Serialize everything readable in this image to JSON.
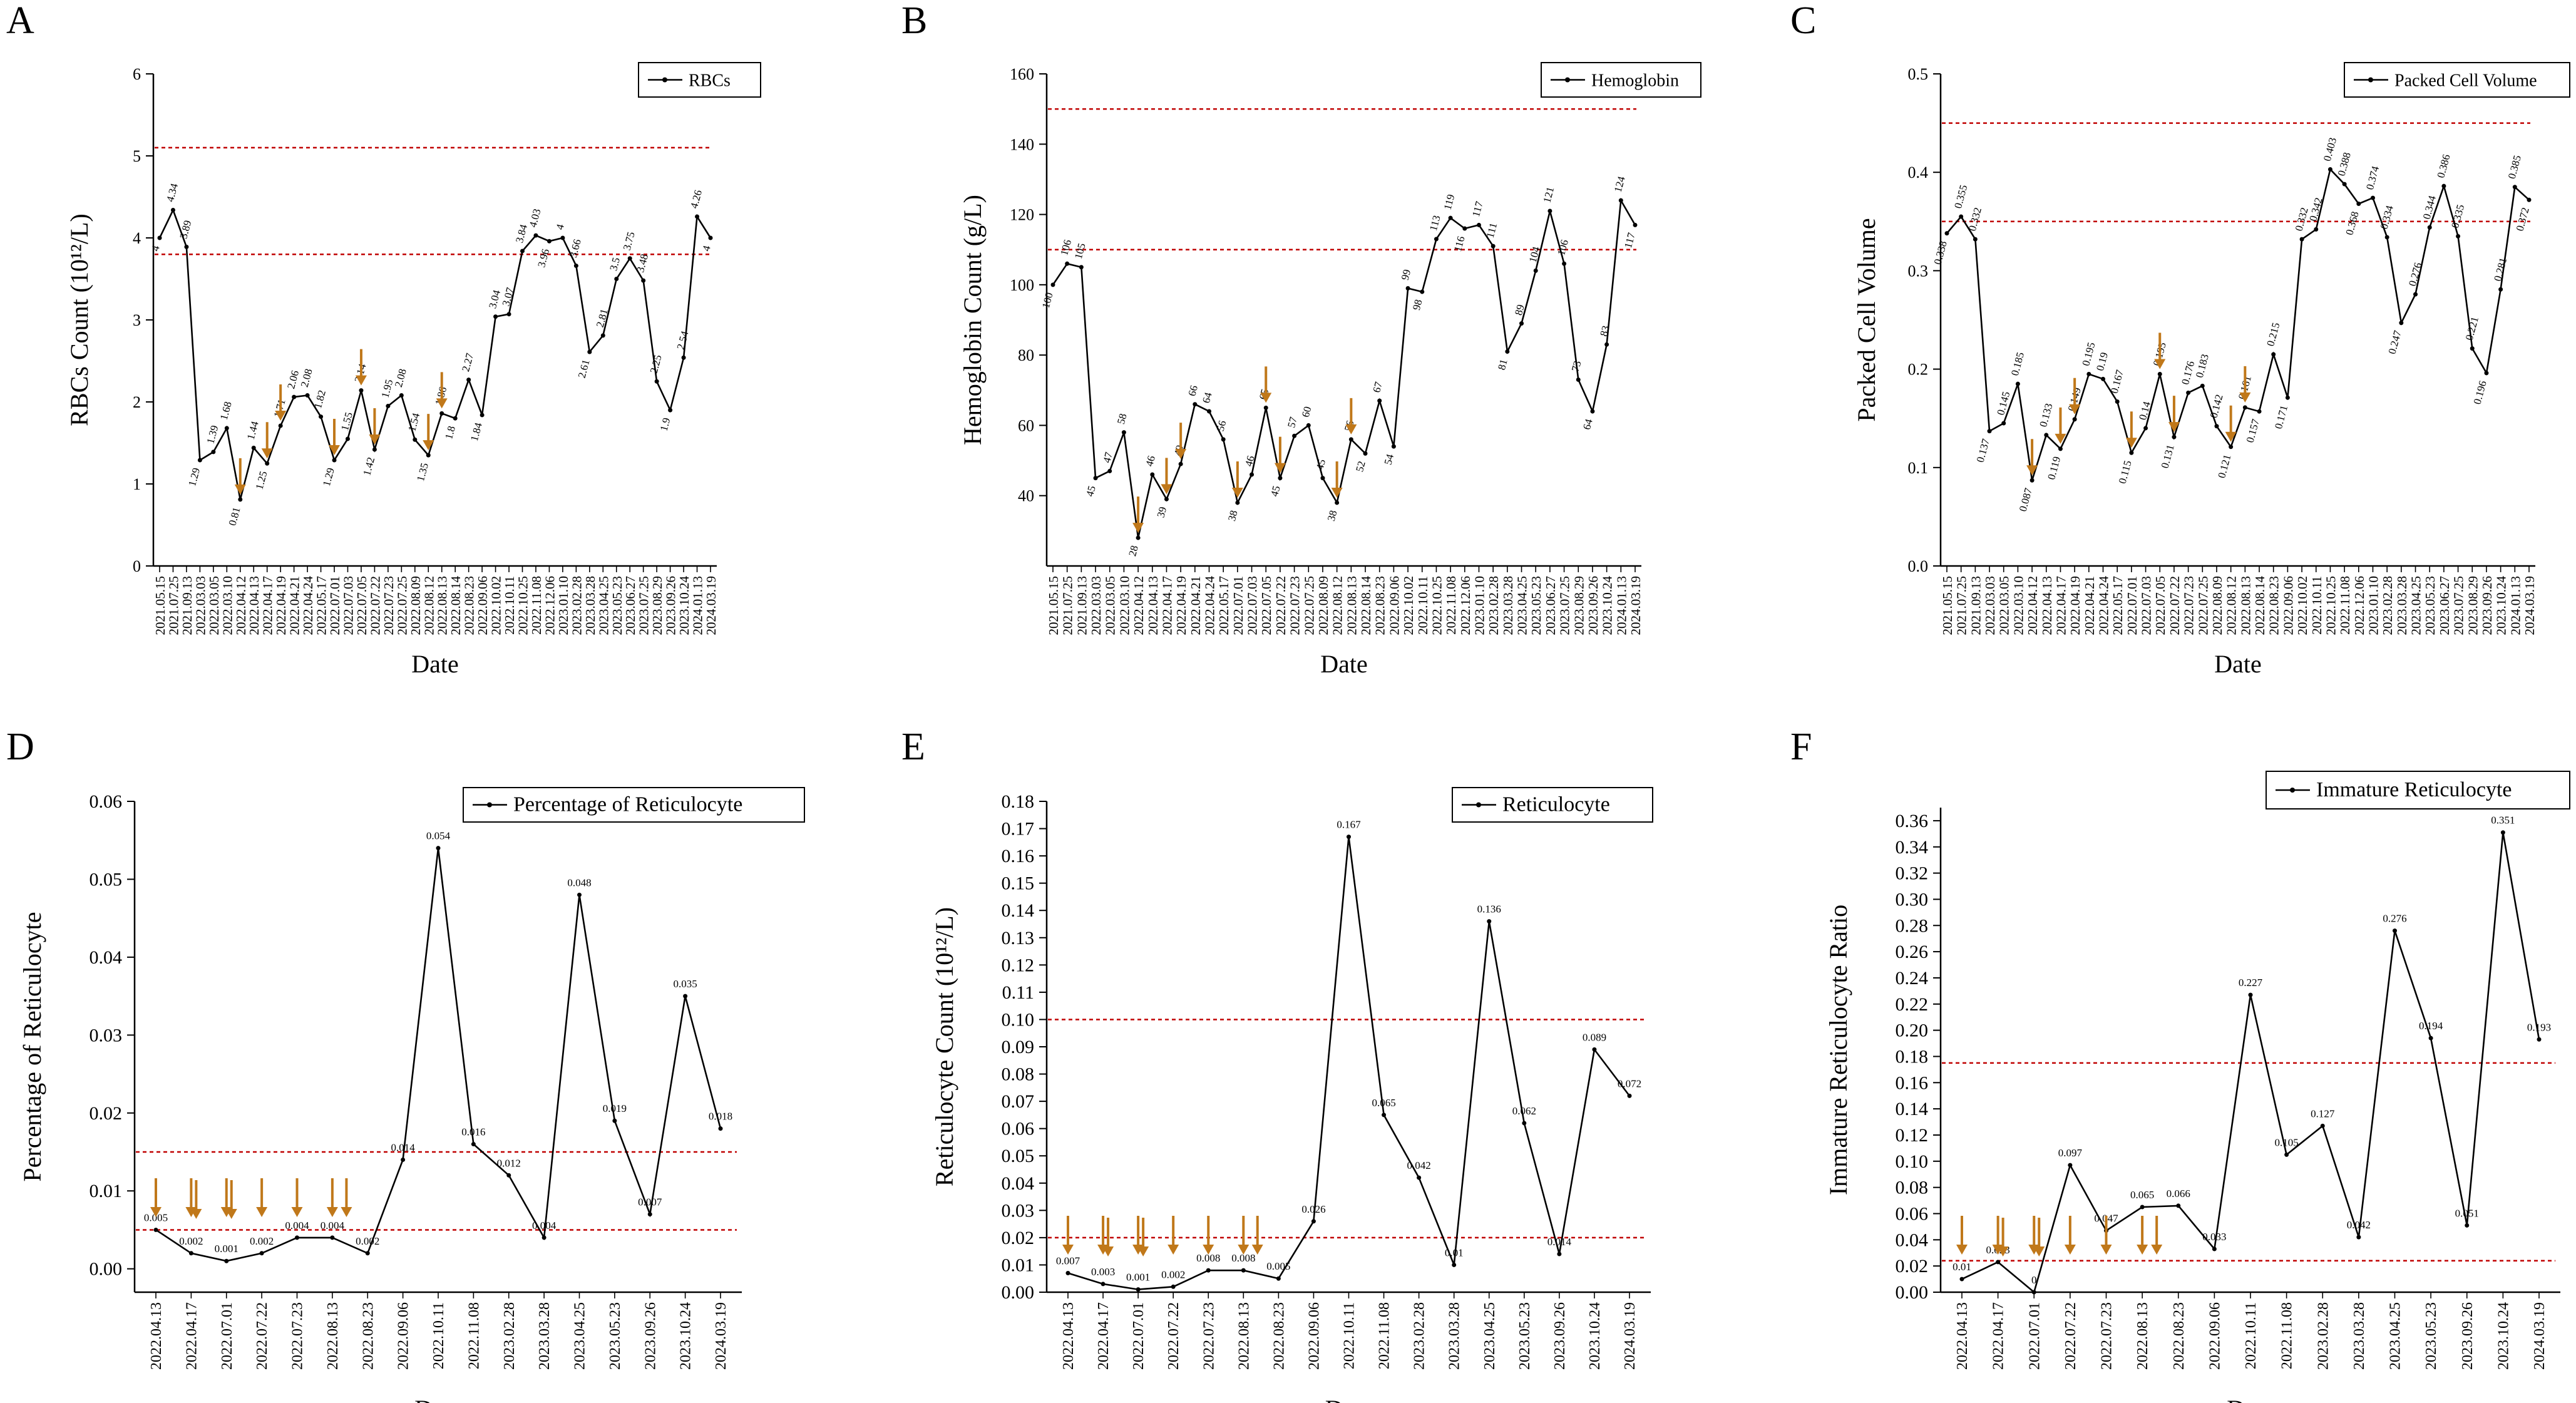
{
  "figure": {
    "colors": {
      "line": "#000000",
      "reference": "#c00000",
      "arrow": "#c0781a",
      "axis": "#000000"
    }
  },
  "chart_data": [
    {
      "panel": "A",
      "type": "line",
      "ylabel": "RBCs Count (10¹²/L)",
      "xlabel": "Date",
      "legend": "RBCs",
      "legend_position": "top-right",
      "ylim": [
        0,
        6
      ],
      "yticks": [
        0,
        1,
        2,
        3,
        4,
        5,
        6
      ],
      "ytick_labels": [
        "0",
        "1",
        "2",
        "3",
        "4",
        "5",
        "6"
      ],
      "reference_lines": [
        5.1,
        3.8
      ],
      "categories": [
        "2021.05.15",
        "2021.07.25",
        "2021.09.13",
        "2022.03.03",
        "2022.03.05",
        "2022.03.10",
        "2022.04.12",
        "2022.04.13",
        "2022.04.17",
        "2022.04.19",
        "2022.04.21",
        "2022.04.24",
        "2022.05.17",
        "2022.07.01",
        "2022.07.03",
        "2022.07.05",
        "2022.07.22",
        "2022.07.23",
        "2022.07.25",
        "2022.08.09",
        "2022.08.12",
        "2022.08.13",
        "2022.08.14",
        "2022.08.23",
        "2022.09.06",
        "2022.10.02",
        "2022.10.11",
        "2022.10.25",
        "2022.11.08",
        "2022.12.06",
        "2023.01.10",
        "2023.02.28",
        "2023.03.28",
        "2023.04.25",
        "2023.05.23",
        "2023.06.27",
        "2023.07.25",
        "2023.08.29",
        "2023.09.26",
        "2023.10.24",
        "2024.01.13",
        "2024.03.19"
      ],
      "values": [
        4,
        4.34,
        3.89,
        1.29,
        1.39,
        1.68,
        0.81,
        1.44,
        1.25,
        1.71,
        2.06,
        2.08,
        1.82,
        1.29,
        1.55,
        2.14,
        1.42,
        1.95,
        2.08,
        1.54,
        1.35,
        1.86,
        1.8,
        2.27,
        1.84,
        3.04,
        3.07,
        3.84,
        4.03,
        3.96,
        4,
        3.66,
        2.61,
        2.81,
        3.5,
        3.75,
        3.48,
        2.25,
        1.9,
        2.54,
        4.26,
        4
      ],
      "value_labels": [
        "4",
        "4.34",
        "3.89",
        "1.29",
        "1.39",
        "1.68",
        "0.81",
        "1.44",
        "1.25",
        "1.71",
        "2.06",
        "2.08",
        "1.82",
        "1.29",
        "1.55",
        "2.14",
        "1.42",
        "1.95",
        "2.08",
        "1.54",
        "1.35",
        "1.86",
        "1.8",
        "2.27",
        "1.84",
        "3.04",
        "3.07",
        "3.84",
        "4.03",
        "3.96",
        "4",
        "3.66",
        "2.61",
        "2.81",
        "3.5",
        "3.75",
        "3.48",
        "2.25",
        "1.9",
        "2.54",
        "4.26",
        "4"
      ],
      "arrow_indices": [
        6,
        8,
        9,
        13,
        15,
        16,
        20,
        21
      ]
    },
    {
      "panel": "B",
      "type": "line",
      "ylabel": "Hemoglobin Count (g/L)",
      "xlabel": "Date",
      "legend": "Hemoglobin",
      "legend_position": "top-right",
      "ylim": [
        20,
        160
      ],
      "yticks": [
        40,
        60,
        80,
        100,
        120,
        140,
        160
      ],
      "ytick_labels": [
        "40",
        "60",
        "80",
        "100",
        "120",
        "140",
        "160"
      ],
      "reference_lines": [
        150,
        110
      ],
      "categories": [
        "2021.05.15",
        "2021.07.25",
        "2021.09.13",
        "2022.03.03",
        "2022.03.05",
        "2022.03.10",
        "2022.04.12",
        "2022.04.13",
        "2022.04.17",
        "2022.04.19",
        "2022.04.21",
        "2022.04.24",
        "2022.05.17",
        "2022.07.01",
        "2022.07.03",
        "2022.07.05",
        "2022.07.22",
        "2022.07.23",
        "2022.07.25",
        "2022.08.09",
        "2022.08.12",
        "2022.08.13",
        "2022.08.14",
        "2022.08.23",
        "2022.09.06",
        "2022.10.02",
        "2022.10.11",
        "2022.10.25",
        "2022.11.08",
        "2022.12.06",
        "2023.01.10",
        "2023.02.28",
        "2023.03.28",
        "2023.04.25",
        "2023.05.23",
        "2023.06.27",
        "2023.07.25",
        "2023.08.29",
        "2023.09.26",
        "2023.10.24",
        "2024.01.13",
        "2024.03.19"
      ],
      "values": [
        100,
        106,
        105,
        45,
        47,
        58,
        28,
        46,
        39,
        49,
        66,
        64,
        56,
        38,
        46,
        65,
        45,
        57,
        60,
        45,
        38,
        56,
        52,
        67,
        54,
        99,
        98,
        113,
        119,
        116,
        117,
        111,
        81,
        89,
        104,
        121,
        106,
        73,
        64,
        83,
        124,
        117
      ],
      "value_labels": [
        "100",
        "106",
        "105",
        "45",
        "47",
        "58",
        "28",
        "46",
        "39",
        "49",
        "66",
        "64",
        "56",
        "38",
        "46",
        "65",
        "45",
        "57",
        "60",
        "45",
        "38",
        "56",
        "52",
        "67",
        "54",
        "99",
        "98",
        "113",
        "119",
        "116",
        "117",
        "111",
        "81",
        "89",
        "104",
        "121",
        "106",
        "73",
        "64",
        "83",
        "124",
        "117"
      ],
      "arrow_indices": [
        6,
        8,
        9,
        13,
        15,
        16,
        20,
        21
      ]
    },
    {
      "panel": "C",
      "type": "line",
      "ylabel": "Packed Cell Volume",
      "xlabel": "Date",
      "legend": "Packed Cell Volume",
      "legend_position": "top-right",
      "ylim": [
        0,
        0.5
      ],
      "yticks": [
        0,
        0.1,
        0.2,
        0.3,
        0.4,
        0.5
      ],
      "ytick_labels": [
        "0.0",
        "0.1",
        "0.2",
        "0.3",
        "0.4",
        "0.5"
      ],
      "reference_lines": [
        0.45,
        0.35
      ],
      "categories": [
        "2021.05.15",
        "2021.07.25",
        "2021.09.13",
        "2022.03.03",
        "2022.03.05",
        "2022.03.10",
        "2022.04.12",
        "2022.04.13",
        "2022.04.17",
        "2022.04.19",
        "2022.04.21",
        "2022.04.24",
        "2022.05.17",
        "2022.07.01",
        "2022.07.03",
        "2022.07.05",
        "2022.07.22",
        "2022.07.23",
        "2022.07.25",
        "2022.08.09",
        "2022.08.12",
        "2022.08.13",
        "2022.08.14",
        "2022.08.23",
        "2022.09.06",
        "2022.10.02",
        "2022.10.11",
        "2022.10.25",
        "2022.11.08",
        "2022.12.06",
        "2023.01.10",
        "2023.02.28",
        "2023.03.28",
        "2023.04.25",
        "2023.05.23",
        "2023.06.27",
        "2023.07.25",
        "2023.08.29",
        "2023.09.26",
        "2023.10.24",
        "2024.01.13",
        "2024.03.19"
      ],
      "values": [
        0.338,
        0.355,
        0.332,
        0.137,
        0.145,
        0.185,
        0.087,
        0.133,
        0.119,
        0.149,
        0.195,
        0.19,
        0.167,
        0.115,
        0.14,
        0.195,
        0.131,
        0.176,
        0.183,
        0.142,
        0.121,
        0.161,
        0.157,
        0.215,
        0.171,
        0.332,
        0.342,
        0.403,
        0.388,
        0.368,
        0.374,
        0.334,
        0.247,
        0.276,
        0.344,
        0.386,
        0.335,
        0.221,
        0.196,
        0.281,
        0.385,
        0.372
      ],
      "value_labels": [
        "0.338",
        "0.355",
        "0.332",
        "0.137",
        "0.145",
        "0.185",
        "0.087",
        "0.133",
        "0.119",
        "0.149",
        "0.195",
        "0.19",
        "0.167",
        "0.115",
        "0.14",
        "0.195",
        "0.131",
        "0.176",
        "0.183",
        "0.142",
        "0.121",
        "0.161",
        "0.157",
        "0.215",
        "0.171",
        "0.332",
        "0.342",
        "0.403",
        "0.388",
        "0.368",
        "0.374",
        "0.334",
        "0.247",
        "0.276",
        "0.344",
        "0.386",
        "0.335",
        "0.221",
        "0.196",
        "0.281",
        "0.385",
        "0.372"
      ],
      "arrow_indices": [
        6,
        8,
        9,
        13,
        15,
        16,
        20,
        21
      ]
    },
    {
      "panel": "D",
      "type": "line",
      "ylabel": "Percentage of Reticulocyte",
      "xlabel": "Date",
      "legend": "Percentage of Reticulocyte",
      "legend_position": "top-right",
      "ylim": [
        -0.003,
        0.06
      ],
      "yticks": [
        0,
        0.01,
        0.02,
        0.03,
        0.04,
        0.05,
        0.06
      ],
      "ytick_labels": [
        "0.00",
        "0.01",
        "0.02",
        "0.03",
        "0.04",
        "0.05",
        "0.06"
      ],
      "reference_lines": [
        0.015,
        0.005
      ],
      "categories": [
        "2022.04.13",
        "2022.04.17",
        "2022.07.01",
        "2022.07.22",
        "2022.07.23",
        "2022.08.13",
        "2022.08.23",
        "2022.09.06",
        "2022.10.11",
        "2022.11.08",
        "2023.02.28",
        "2023.03.28",
        "2023.04.25",
        "2023.05.23",
        "2023.09.26",
        "2023.10.24",
        "2024.03.19"
      ],
      "values": [
        0.005,
        0.002,
        0.001,
        0.002,
        0.004,
        0.004,
        0.002,
        0.014,
        0.054,
        0.016,
        0.012,
        0.004,
        0.048,
        0.019,
        0.007,
        0.035,
        0.018
      ],
      "value_labels": [
        "0.005",
        "0.002",
        "0.001",
        "0.002",
        "0.004",
        "0.004",
        "0.002",
        "0.014",
        "0.054",
        "0.016",
        "0.012",
        "0.004",
        "0.048",
        "0.019",
        "0.007",
        "0.035",
        "0.018"
      ],
      "arrow_positions": [
        0,
        1,
        1,
        2,
        2,
        3,
        4,
        5,
        5.4
      ]
    },
    {
      "panel": "E",
      "type": "line",
      "ylabel": "Reticulocyte Count (10¹²/L)",
      "xlabel": "Date",
      "legend": "Reticulocyte",
      "legend_position": "top-right",
      "ylim": [
        0,
        0.18
      ],
      "yticks": [
        0,
        0.01,
        0.02,
        0.03,
        0.04,
        0.05,
        0.06,
        0.07,
        0.08,
        0.09,
        0.1,
        0.11,
        0.12,
        0.13,
        0.14,
        0.15,
        0.16,
        0.17,
        0.18
      ],
      "ytick_labels": [
        "0.00",
        "0.01",
        "0.02",
        "0.03",
        "0.04",
        "0.05",
        "0.06",
        "0.07",
        "0.08",
        "0.09",
        "0.10",
        "0.11",
        "0.12",
        "0.13",
        "0.14",
        "0.15",
        "0.16",
        "0.17",
        "0.18"
      ],
      "reference_lines": [
        0.1,
        0.02
      ],
      "categories": [
        "2022.04.13",
        "2022.04.17",
        "2022.07.01",
        "2022.07.22",
        "2022.07.23",
        "2022.08.13",
        "2022.08.23",
        "2022.09.06",
        "2022.10.11",
        "2022.11.08",
        "2023.02.28",
        "2023.03.28",
        "2023.04.25",
        "2023.05.23",
        "2023.09.26",
        "2023.10.24",
        "2024.03.19"
      ],
      "values": [
        0.007,
        0.003,
        0.001,
        0.002,
        0.008,
        0.008,
        0.005,
        0.026,
        0.167,
        0.065,
        0.042,
        0.01,
        0.136,
        0.062,
        0.014,
        0.089,
        0.072
      ],
      "value_labels": [
        "0.007",
        "0.003",
        "0.001",
        "0.002",
        "0.008",
        "0.008",
        "0.005",
        "0.026",
        "0.167",
        "0.065",
        "0.042",
        "0.01",
        "0.136",
        "0.062",
        "0.014",
        "0.089",
        "0.072"
      ],
      "arrow_positions": [
        0,
        1,
        1,
        2,
        2,
        3,
        4,
        5,
        5.4
      ]
    },
    {
      "panel": "F",
      "type": "line",
      "ylabel": "Immature Reticulocyte Ratio",
      "xlabel": "Date",
      "legend": "Immature Reticulocyte",
      "legend_position": "top-right",
      "ylim": [
        0,
        0.37
      ],
      "yticks": [
        0,
        0.02,
        0.04,
        0.06,
        0.08,
        0.1,
        0.12,
        0.14,
        0.16,
        0.18,
        0.2,
        0.22,
        0.24,
        0.26,
        0.28,
        0.3,
        0.32,
        0.34,
        0.36
      ],
      "ytick_labels": [
        "0.00",
        "0.02",
        "0.04",
        "0.06",
        "0.08",
        "0.10",
        "0.12",
        "0.14",
        "0.16",
        "0.18",
        "0.20",
        "0.22",
        "0.24",
        "0.26",
        "0.28",
        "0.30",
        "0.32",
        "0.34",
        "0.36"
      ],
      "reference_lines": [
        0.175,
        0.024
      ],
      "categories": [
        "2022.04.13",
        "2022.04.17",
        "2022.07.01",
        "2022.07.22",
        "2022.07.23",
        "2022.08.13",
        "2022.08.23",
        "2022.09.06",
        "2022.10.11",
        "2022.11.08",
        "2023.02.28",
        "2023.03.28",
        "2023.04.25",
        "2023.05.23",
        "2023.09.26",
        "2023.10.24",
        "2024.03.19"
      ],
      "values": [
        0.01,
        0.023,
        0.0,
        0.097,
        0.047,
        0.065,
        0.066,
        0.033,
        0.227,
        0.105,
        0.127,
        0.042,
        0.276,
        0.194,
        0.051,
        0.351,
        0.193
      ],
      "value_labels": [
        "0.01",
        "0.023",
        "0",
        "0.097",
        "0.047",
        "0.065",
        "0.066",
        "0.033",
        "0.227",
        "0.105",
        "0.127",
        "0.042",
        "0.276",
        "0.194",
        "0.051",
        "0.351",
        "0.193"
      ],
      "arrow_positions": [
        0,
        1,
        1,
        2,
        2,
        3,
        4,
        5,
        5.4
      ]
    }
  ]
}
